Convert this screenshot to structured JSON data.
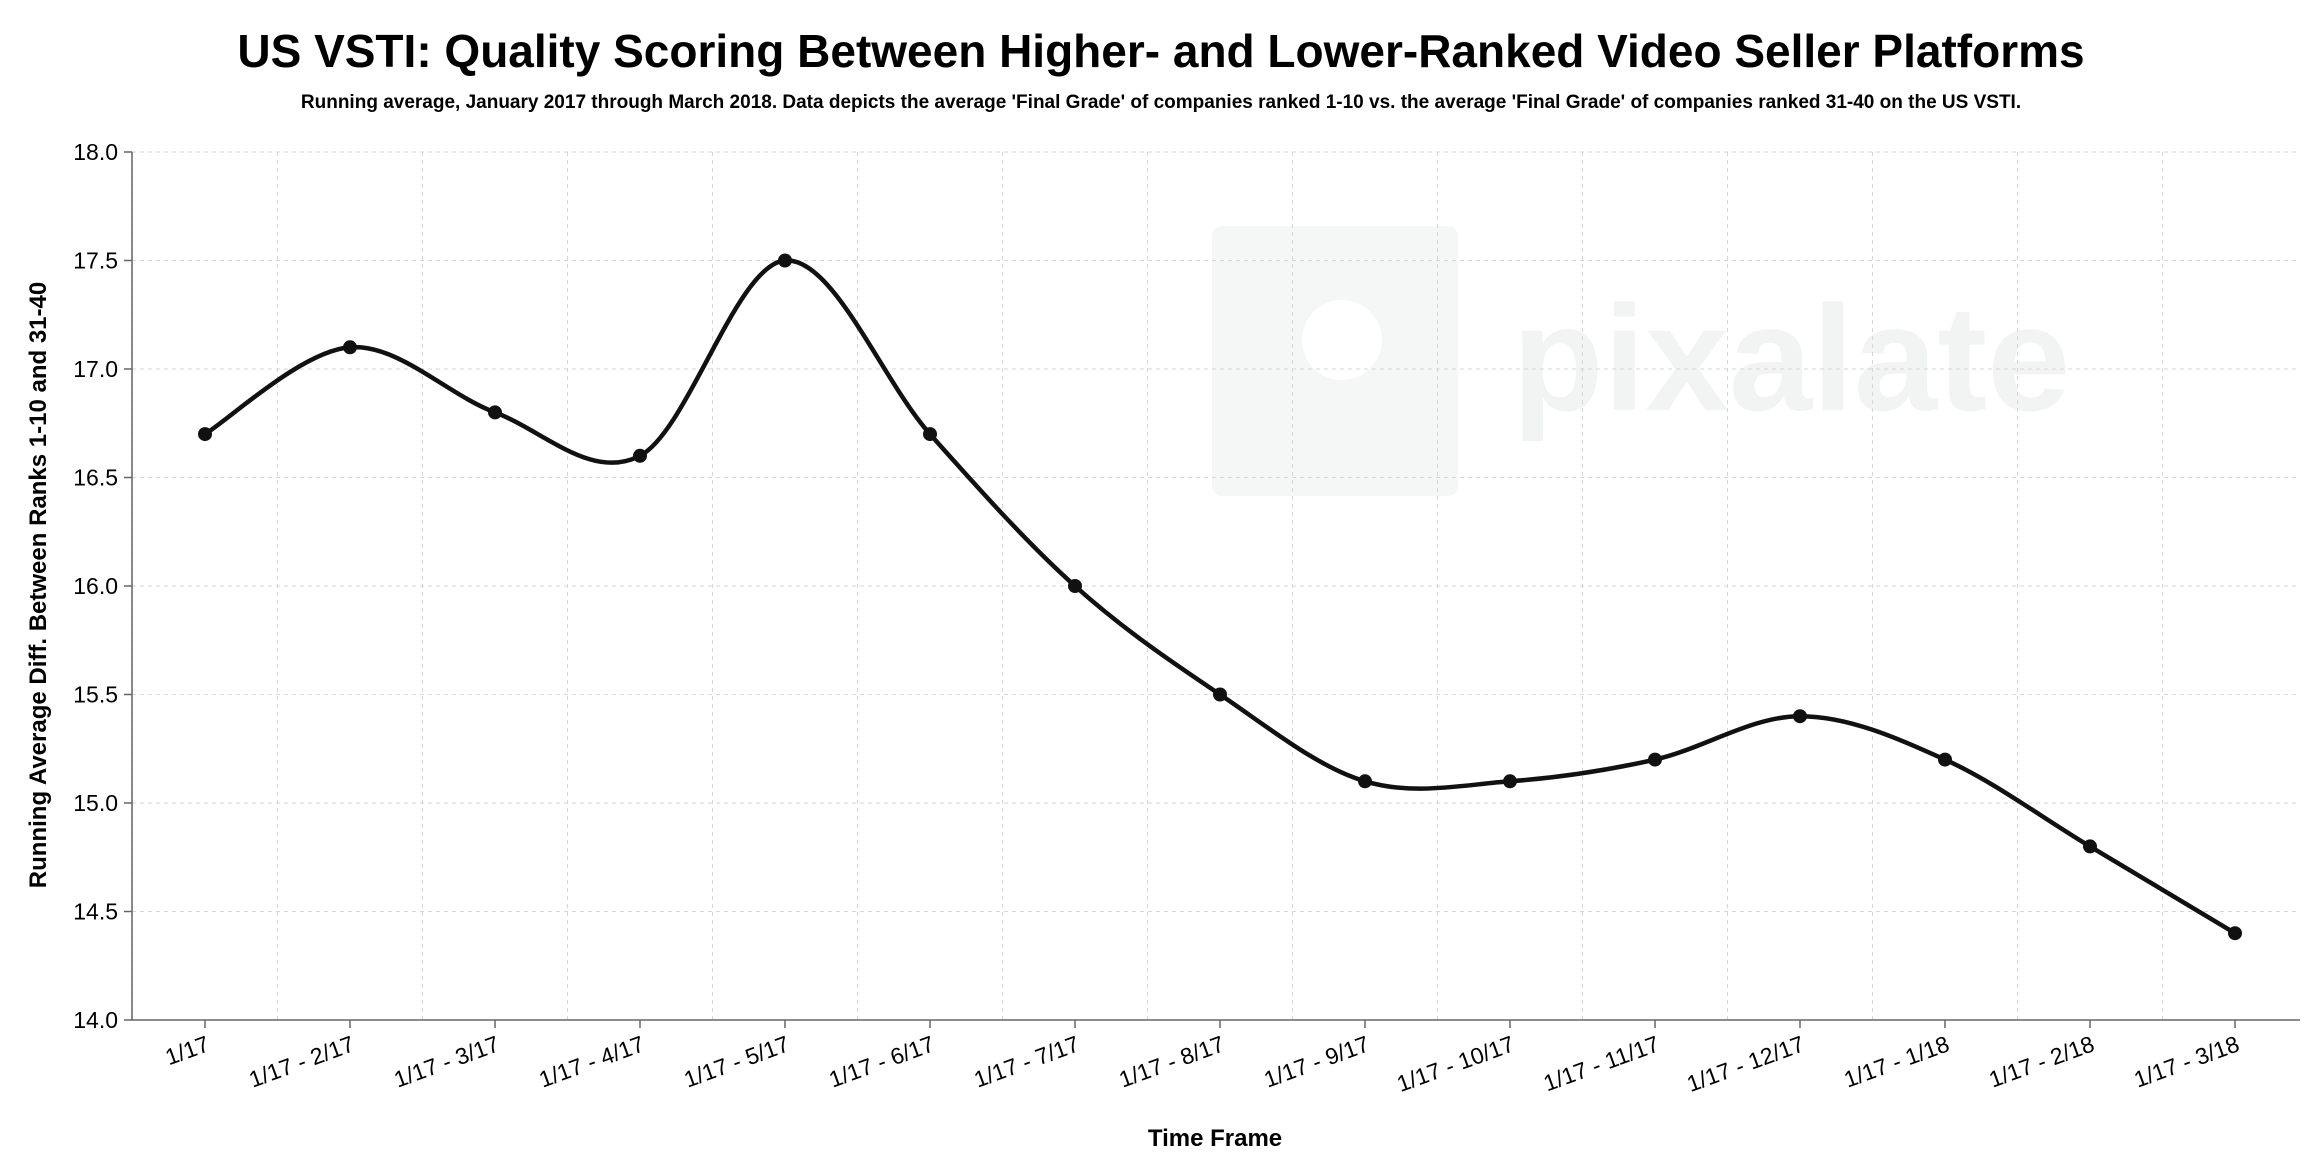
{
  "chart_data": {
    "type": "line",
    "title": "US VSTI: Quality Scoring Between Higher- and Lower-Ranked Video Seller Platforms",
    "subtitle": "Running average, January 2017 through March 2018. Data depicts the average 'Final Grade' of companies ranked 1-10 vs. the average 'Final Grade' of companies ranked 31-40 on the US VSTI.",
    "xlabel": "Time Frame",
    "ylabel": "Running Average Diff. Between Ranks 1-10 and 31-40",
    "ylim": [
      14.0,
      18.0
    ],
    "yticks": [
      "14.0",
      "14.5",
      "15.0",
      "15.5",
      "16.0",
      "16.5",
      "17.0",
      "17.5",
      "18.0"
    ],
    "grid": true,
    "categories": [
      "1/17",
      "1/17 - 2/17",
      "1/17 - 3/17",
      "1/17 - 4/17",
      "1/17 - 5/17",
      "1/17 - 6/17",
      "1/17 - 7/17",
      "1/17 - 8/17",
      "1/17 - 9/17",
      "1/17 - 10/17",
      "1/17 - 11/17",
      "1/17 - 12/17",
      "1/17 - 1/18",
      "1/17 - 2/18",
      "1/17 - 3/18"
    ],
    "series": [
      {
        "values": [
          16.7,
          17.1,
          16.8,
          16.6,
          17.5,
          16.7,
          16.0,
          15.5,
          15.1,
          15.1,
          15.2,
          15.4,
          15.2,
          14.8,
          14.4
        ]
      }
    ],
    "line_color": "#111111",
    "watermark": "pixalate"
  }
}
